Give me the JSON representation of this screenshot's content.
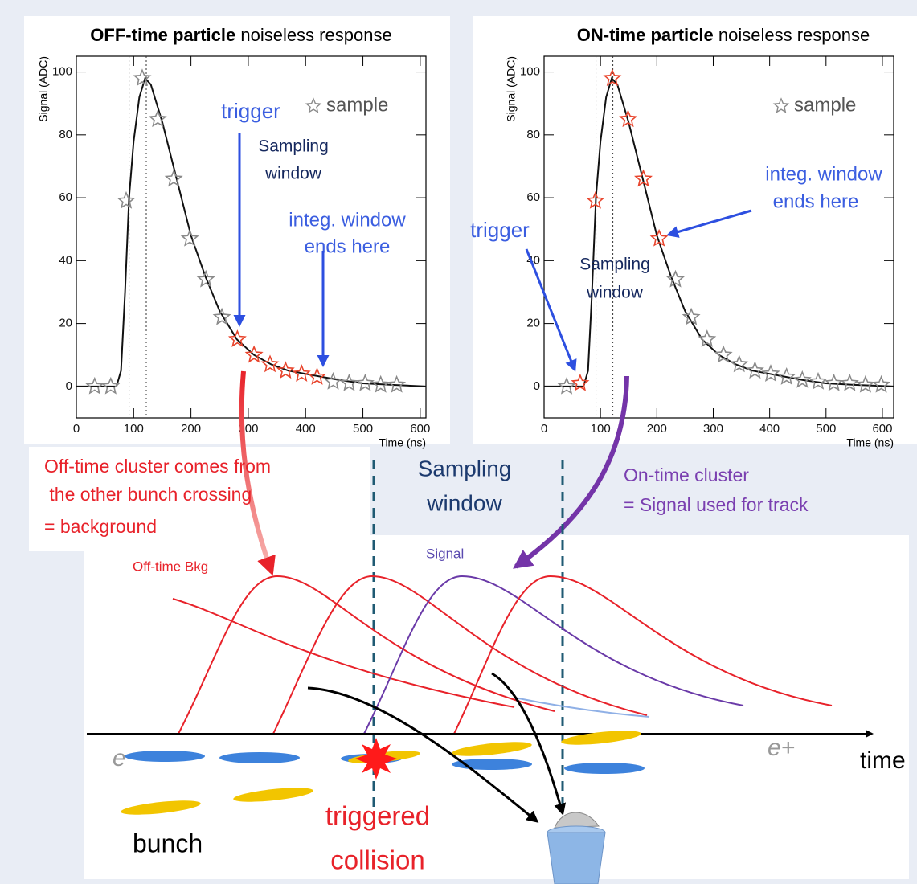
{
  "chart_data": [
    {
      "type": "line",
      "title": "OFF-time particle",
      "title_suffix": "noiseless response",
      "x_label": "Time (ns)",
      "y_label": "Signal (ADC)",
      "xlim": [
        0,
        610
      ],
      "ylim": [
        -10,
        105
      ],
      "xticks": [
        0,
        100,
        200,
        300,
        400,
        500,
        600
      ],
      "yticks": [
        0,
        20,
        40,
        60,
        80,
        100
      ],
      "grid": false,
      "legend": "upper right",
      "vlines": [
        92,
        122
      ],
      "curve": {
        "color": "#111111",
        "x": [
          0,
          70,
          78,
          85,
          92,
          100,
          110,
          120,
          130,
          150,
          175,
          200,
          225,
          250,
          280,
          310,
          340,
          370,
          400,
          430,
          460,
          500,
          550,
          610
        ],
        "values": [
          0,
          0,
          5,
          30,
          60,
          78,
          92,
          98,
          96,
          84,
          66,
          48,
          35,
          24,
          15,
          10,
          7,
          5,
          4,
          3,
          2,
          1,
          0.5,
          0
        ]
      },
      "series": [
        {
          "name": "sample",
          "color": "#8a8a8a",
          "x": [
            32,
            60,
            87,
            115,
            142,
            170,
            198,
            226,
            254,
            448,
            476,
            504,
            531,
            559
          ],
          "values": [
            0,
            0,
            59,
            98,
            85,
            66,
            47,
            34,
            22,
            1.5,
            1,
            1,
            0.5,
            0.5
          ]
        },
        {
          "color": "#e8442c",
          "x": [
            281,
            310,
            338,
            365,
            393,
            420
          ],
          "values": [
            15,
            10,
            7,
            5,
            4,
            3
          ]
        }
      ],
      "annotations": {
        "trigger": "trigger",
        "sampling_window": [
          "Sampling",
          "window"
        ],
        "integ_window": [
          "integ. window",
          "ends here"
        ]
      }
    },
    {
      "type": "line",
      "title": "ON-time particle",
      "title_suffix": "noiseless response",
      "x_label": "Time (ns)",
      "y_label": "Signal (ADC)",
      "xlim": [
        0,
        620
      ],
      "ylim": [
        -10,
        105
      ],
      "xticks": [
        0,
        100,
        200,
        300,
        400,
        500,
        600
      ],
      "yticks": [
        0,
        20,
        40,
        60,
        80,
        100
      ],
      "grid": false,
      "legend": "upper right",
      "vlines": [
        92,
        122
      ],
      "curve": {
        "color": "#111111",
        "x": [
          0,
          70,
          78,
          85,
          92,
          100,
          110,
          120,
          130,
          150,
          175,
          200,
          225,
          250,
          280,
          310,
          340,
          370,
          400,
          430,
          460,
          500,
          550,
          620
        ],
        "values": [
          0,
          0,
          5,
          30,
          60,
          78,
          92,
          98,
          96,
          84,
          66,
          48,
          35,
          24,
          15,
          10,
          7,
          5,
          4,
          3,
          2,
          1,
          0.5,
          0
        ]
      },
      "series": [
        {
          "name": "sample",
          "color": "#8a8a8a",
          "x": [
            40,
            233,
            261,
            289,
            318,
            346,
            374,
            402,
            430,
            458,
            486,
            514,
            542,
            570,
            598
          ],
          "values": [
            0,
            34,
            22,
            15,
            10,
            7,
            5,
            4,
            3,
            2,
            1.5,
            1,
            1,
            0.5,
            0.5
          ]
        },
        {
          "color": "#e8442c",
          "x": [
            64,
            91,
            121,
            149,
            176,
            204
          ],
          "values": [
            1,
            59,
            98,
            85,
            66,
            47
          ]
        }
      ],
      "annotations": {
        "trigger": "trigger",
        "sampling_window": [
          "Sampling",
          "window"
        ],
        "integ_window": [
          "integ. window",
          "ends here"
        ]
      }
    }
  ],
  "diagram": {
    "offtime_note": [
      "Off-time cluster comes from",
      " the other bunch crossing",
      "= background"
    ],
    "sampling_window": [
      "Sampling",
      "window"
    ],
    "ontime_note": [
      "On-time cluster",
      "= Signal used for track"
    ],
    "offtime_bkg": "Off-time Bkg",
    "signal": "Signal",
    "e_minus": "e−",
    "e_plus": "e+",
    "time": "time",
    "bunch": "bunch",
    "triggered_collision": [
      "triggered",
      "collision"
    ]
  }
}
